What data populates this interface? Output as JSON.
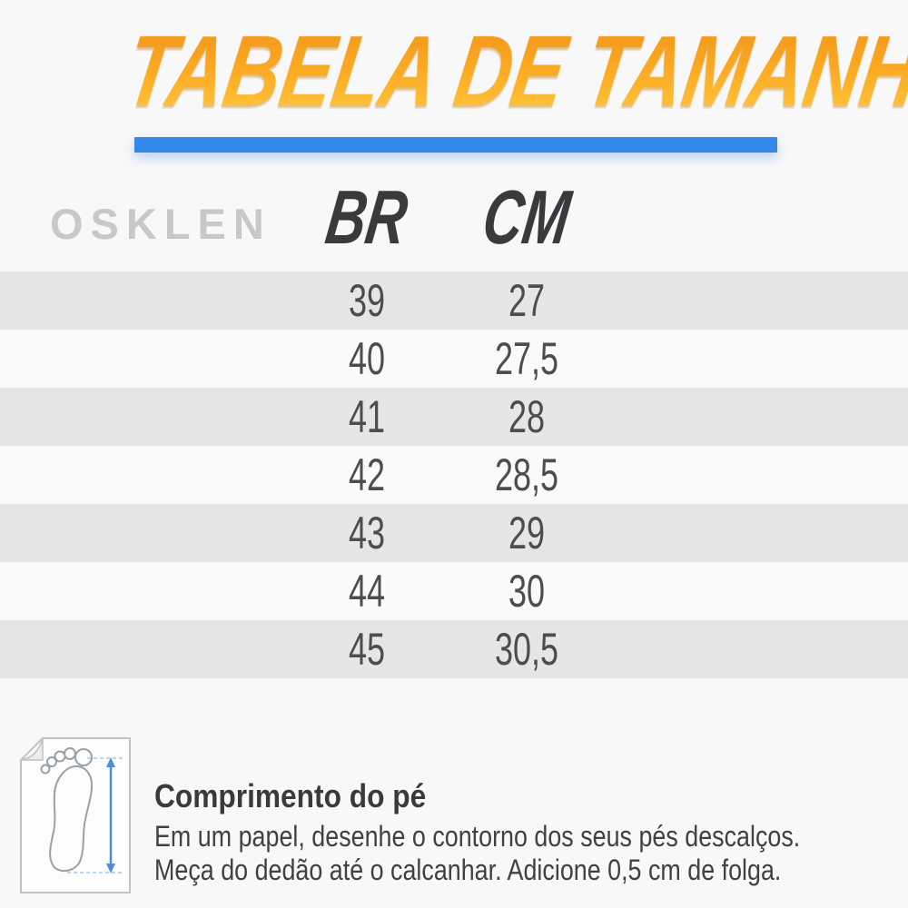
{
  "title": "TABELA DE TAMANHOS",
  "brand": "OSKLEN",
  "table": {
    "columns": [
      "BR",
      "CM"
    ],
    "rows": [
      {
        "br": "39",
        "cm": "27"
      },
      {
        "br": "40",
        "cm": "27,5"
      },
      {
        "br": "41",
        "cm": "28"
      },
      {
        "br": "42",
        "cm": "28,5"
      },
      {
        "br": "43",
        "cm": "29"
      },
      {
        "br": "44",
        "cm": "30"
      },
      {
        "br": "45",
        "cm": "30,5"
      }
    ]
  },
  "footer": {
    "heading": "Comprimento do pé",
    "line1": "Em um papel, desenhe o contorno dos seus pés descalços.",
    "line2": "Meça do dedão até o calcanhar. Adicione 0,5 cm de folga."
  },
  "icons": {
    "foot_measure": "foot-measure-icon"
  },
  "colors": {
    "bg": "#F8F8F8",
    "row-gray": "#E6E6E6",
    "row-light": "#FAFAFA",
    "accent": "#3488EA",
    "ink": "#3A3A3C",
    "brand": "#C8C8C8",
    "num": "#4D4D4F",
    "body-ink": "#414143",
    "title-top": "#F0941B",
    "title-bottom": "#FFC940",
    "arrow": "#4C8FD6"
  },
  "chart_data": {
    "type": "table",
    "title": "TABELA DE TAMANHOS",
    "columns": [
      "BR",
      "CM"
    ],
    "rows": [
      [
        "39",
        "27"
      ],
      [
        "40",
        "27,5"
      ],
      [
        "41",
        "28"
      ],
      [
        "42",
        "28,5"
      ],
      [
        "43",
        "29"
      ],
      [
        "44",
        "30"
      ],
      [
        "45",
        "30,5"
      ]
    ],
    "notes": "Alternating gray/white row stripes; gray on rows 39, 41, 43, 45"
  }
}
